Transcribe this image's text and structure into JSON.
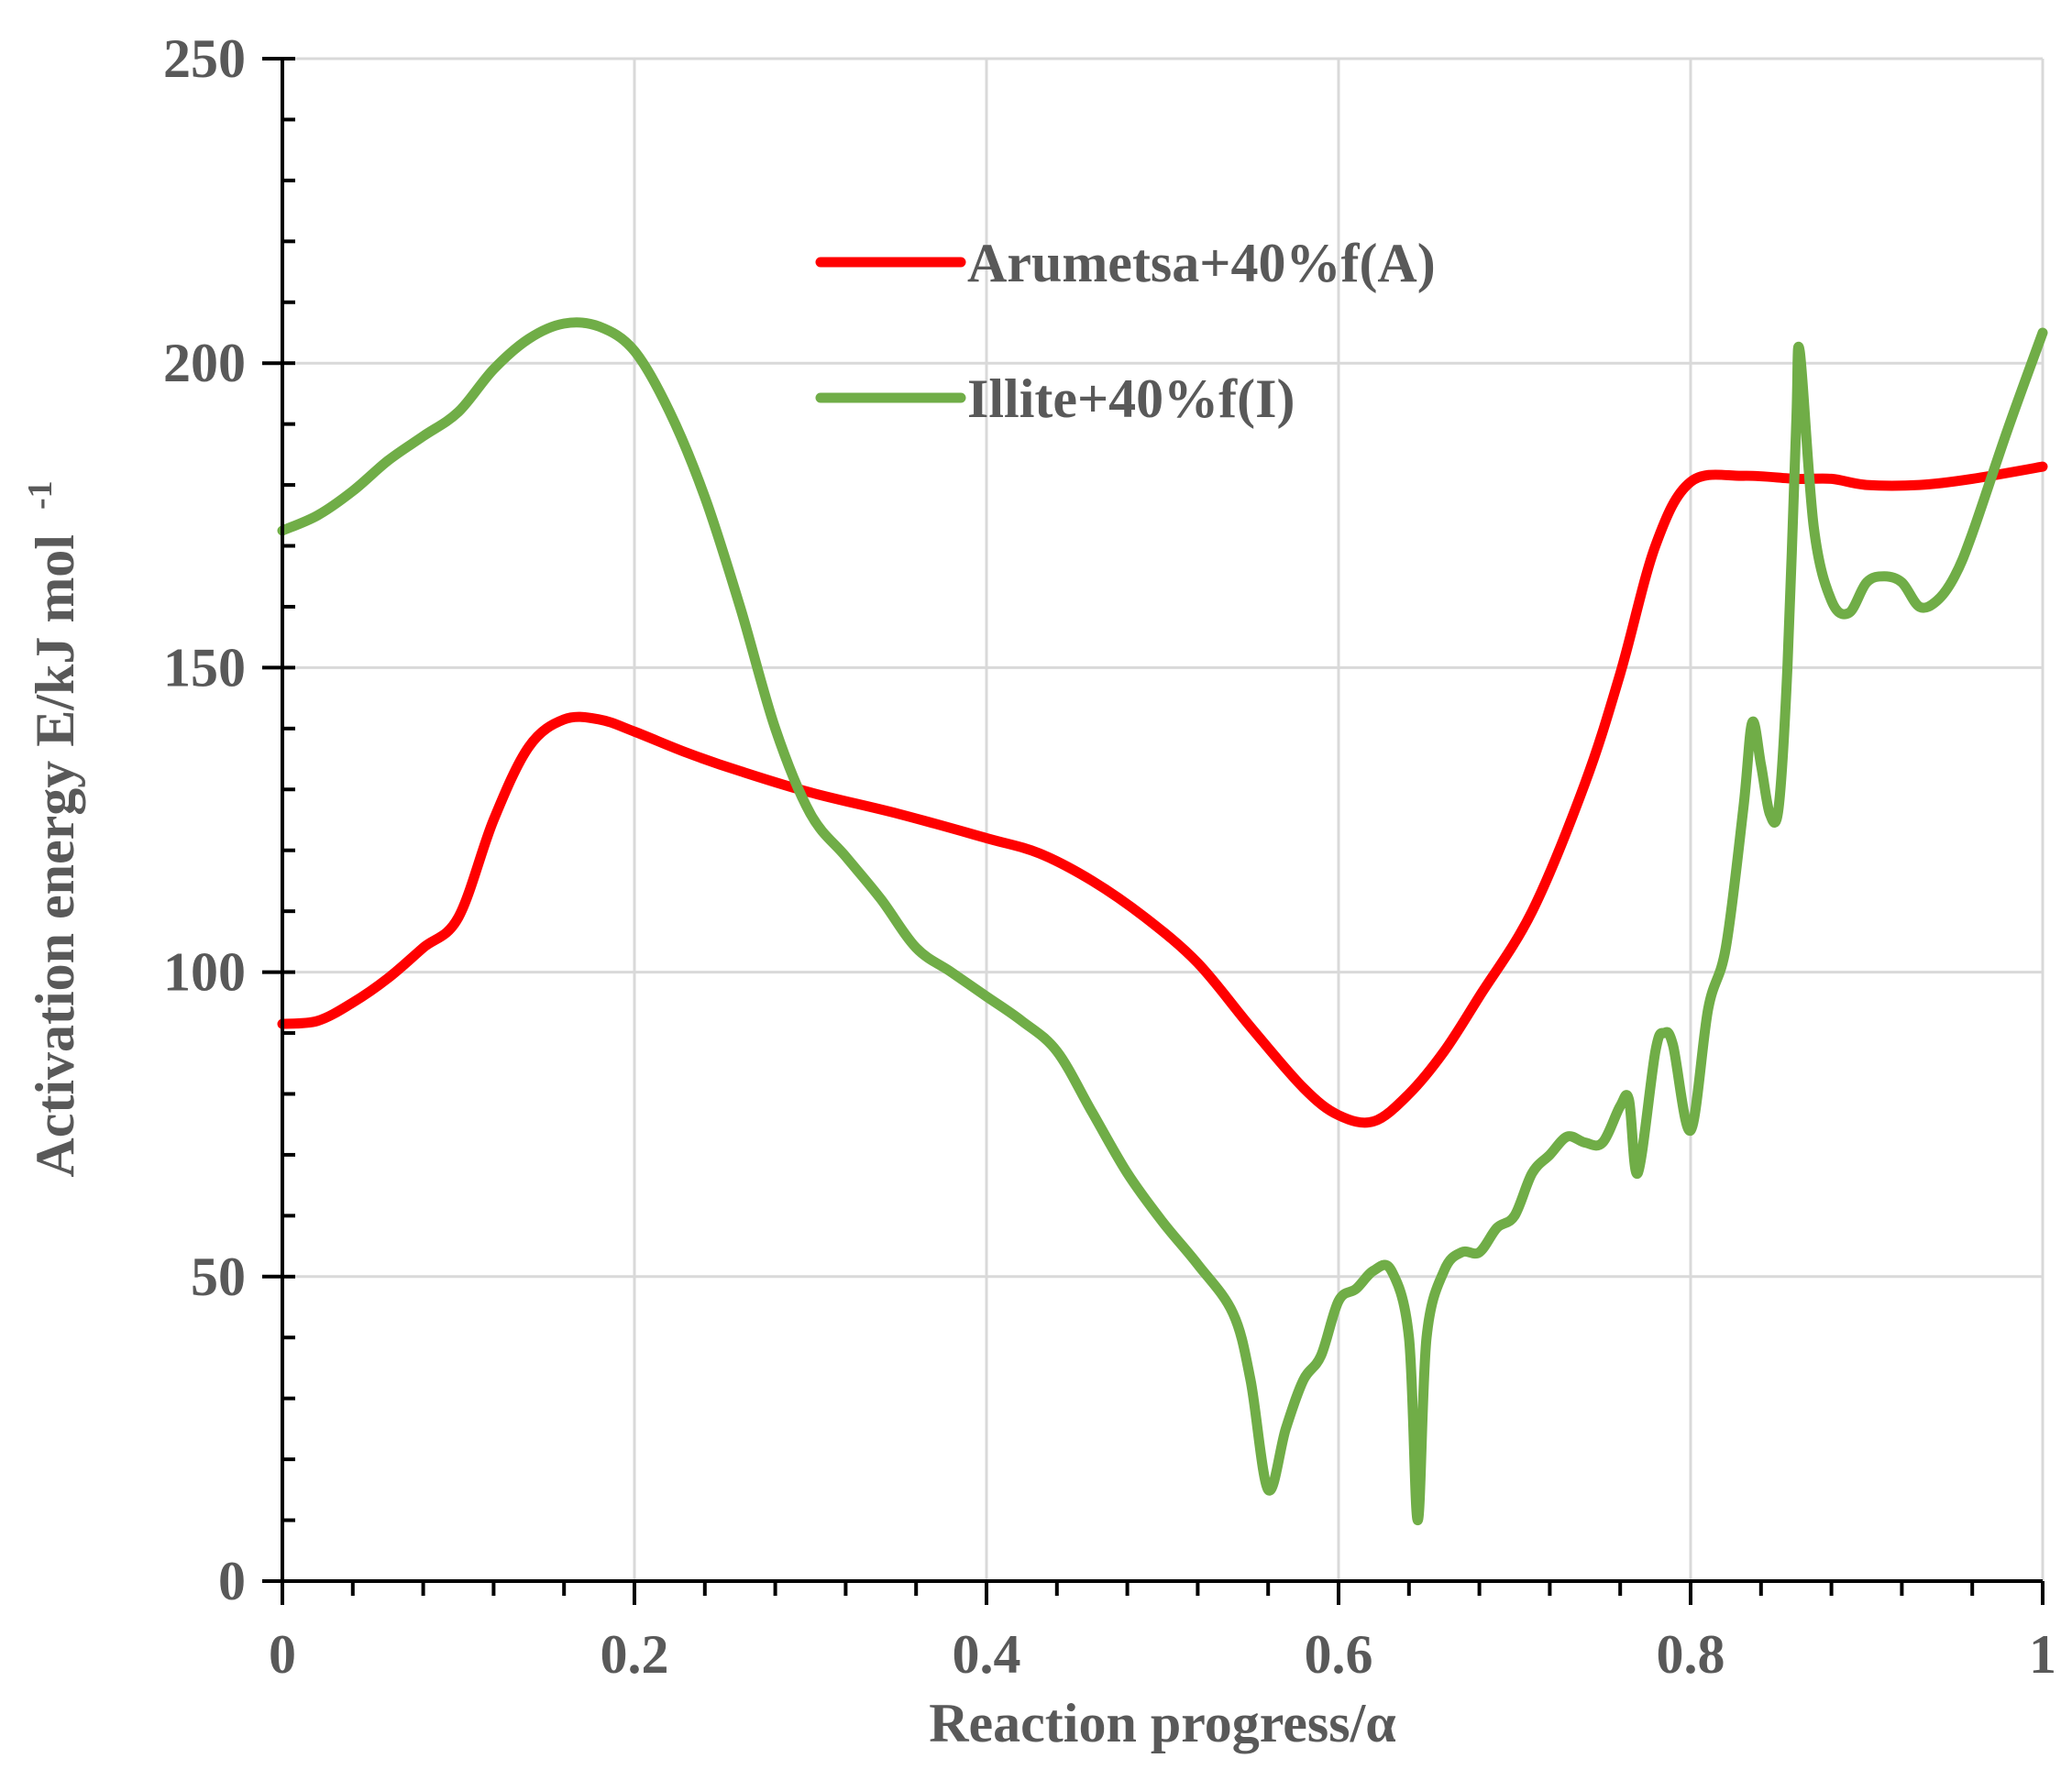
{
  "chart_data": {
    "type": "line",
    "xlabel": "Reaction progress/α",
    "ylabel": "Activation energy  E/kJ mol",
    "ylabel_superscript": "-1",
    "xlim": [
      0,
      1
    ],
    "ylim": [
      0,
      250
    ],
    "x_ticks": [
      0,
      0.2,
      0.4,
      0.6,
      0.8,
      1
    ],
    "x_tick_labels": [
      "0",
      "0.2",
      "0.4",
      "0.6",
      "0.8",
      "1"
    ],
    "x_minor_step": 0.04,
    "y_ticks": [
      0,
      50,
      100,
      150,
      200,
      250
    ],
    "y_tick_labels": [
      "0",
      "50",
      "100",
      "150",
      "200",
      "250"
    ],
    "y_minor_step": 10,
    "grid": true,
    "legend_position": "top-center",
    "series": [
      {
        "name": "Arumetsa+40%f(A)",
        "color": "#ff0000",
        "points": [
          [
            0.0,
            91.5
          ],
          [
            0.02,
            92
          ],
          [
            0.04,
            95
          ],
          [
            0.06,
            99
          ],
          [
            0.08,
            104
          ],
          [
            0.1,
            109
          ],
          [
            0.12,
            125
          ],
          [
            0.14,
            137
          ],
          [
            0.16,
            141.5
          ],
          [
            0.18,
            141.5
          ],
          [
            0.2,
            139.5
          ],
          [
            0.23,
            136
          ],
          [
            0.26,
            133
          ],
          [
            0.3,
            129.5
          ],
          [
            0.35,
            126
          ],
          [
            0.4,
            122
          ],
          [
            0.43,
            119.5
          ],
          [
            0.46,
            115
          ],
          [
            0.49,
            109
          ],
          [
            0.52,
            101.5
          ],
          [
            0.55,
            91
          ],
          [
            0.58,
            81
          ],
          [
            0.6,
            76.5
          ],
          [
            0.62,
            75.5
          ],
          [
            0.64,
            80
          ],
          [
            0.66,
            87
          ],
          [
            0.68,
            96
          ],
          [
            0.71,
            110
          ],
          [
            0.74,
            131
          ],
          [
            0.76,
            149
          ],
          [
            0.78,
            170
          ],
          [
            0.8,
            180.5
          ],
          [
            0.83,
            181.5
          ],
          [
            0.86,
            181
          ],
          [
            0.88,
            181
          ],
          [
            0.9,
            180
          ],
          [
            0.93,
            180
          ],
          [
            0.96,
            181
          ],
          [
            1.0,
            183
          ]
        ]
      },
      {
        "name": "Illite+40%f(I)",
        "color": "#70ad47",
        "points": [
          [
            0.0,
            172.5
          ],
          [
            0.02,
            175
          ],
          [
            0.04,
            179
          ],
          [
            0.06,
            184
          ],
          [
            0.08,
            188
          ],
          [
            0.1,
            192
          ],
          [
            0.12,
            199
          ],
          [
            0.14,
            204
          ],
          [
            0.16,
            206.5
          ],
          [
            0.18,
            206
          ],
          [
            0.2,
            202
          ],
          [
            0.22,
            192
          ],
          [
            0.24,
            178
          ],
          [
            0.26,
            160
          ],
          [
            0.28,
            140
          ],
          [
            0.3,
            126
          ],
          [
            0.32,
            119
          ],
          [
            0.34,
            112
          ],
          [
            0.36,
            104
          ],
          [
            0.38,
            100
          ],
          [
            0.4,
            96
          ],
          [
            0.42,
            92
          ],
          [
            0.44,
            87
          ],
          [
            0.46,
            77
          ],
          [
            0.48,
            67
          ],
          [
            0.5,
            59
          ],
          [
            0.52,
            52
          ],
          [
            0.54,
            44
          ],
          [
            0.55,
            33
          ],
          [
            0.56,
            15
          ],
          [
            0.57,
            25
          ],
          [
            0.58,
            33
          ],
          [
            0.59,
            37
          ],
          [
            0.6,
            46
          ],
          [
            0.61,
            48
          ],
          [
            0.62,
            51
          ],
          [
            0.63,
            51
          ],
          [
            0.64,
            40
          ],
          [
            0.645,
            10
          ],
          [
            0.65,
            40
          ],
          [
            0.66,
            51
          ],
          [
            0.67,
            54
          ],
          [
            0.68,
            54
          ],
          [
            0.69,
            58
          ],
          [
            0.7,
            60
          ],
          [
            0.71,
            67
          ],
          [
            0.72,
            70
          ],
          [
            0.73,
            73
          ],
          [
            0.74,
            72
          ],
          [
            0.75,
            72
          ],
          [
            0.76,
            78
          ],
          [
            0.765,
            79
          ],
          [
            0.77,
            67
          ],
          [
            0.78,
            87
          ],
          [
            0.785,
            90
          ],
          [
            0.79,
            88
          ],
          [
            0.8,
            74
          ],
          [
            0.81,
            94
          ],
          [
            0.82,
            104
          ],
          [
            0.83,
            127
          ],
          [
            0.835,
            141
          ],
          [
            0.84,
            134
          ],
          [
            0.845,
            126
          ],
          [
            0.85,
            127
          ],
          [
            0.855,
            150
          ],
          [
            0.86,
            190
          ],
          [
            0.862,
            202
          ],
          [
            0.87,
            173
          ],
          [
            0.88,
            161
          ],
          [
            0.89,
            159
          ],
          [
            0.9,
            164
          ],
          [
            0.91,
            165
          ],
          [
            0.92,
            164
          ],
          [
            0.93,
            160
          ],
          [
            0.94,
            161
          ],
          [
            0.95,
            165
          ],
          [
            0.96,
            172
          ],
          [
            0.98,
            189
          ],
          [
            1.0,
            205
          ]
        ]
      }
    ]
  }
}
